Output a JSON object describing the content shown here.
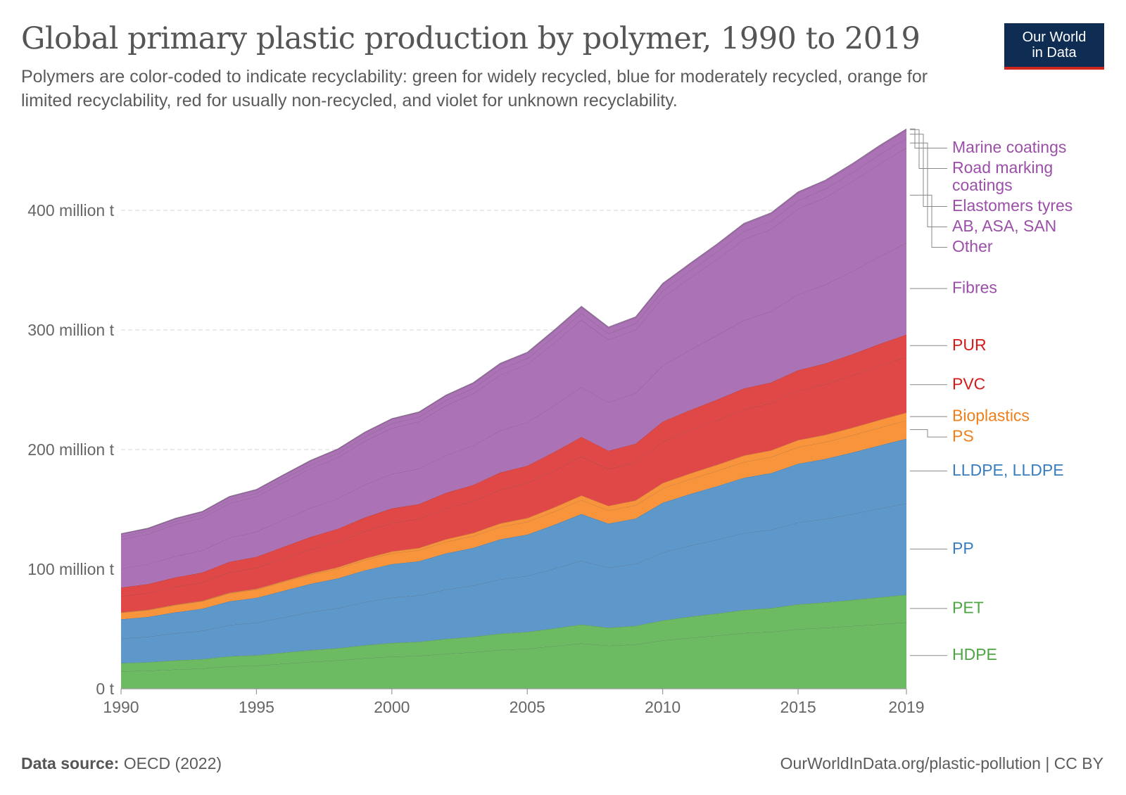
{
  "header": {
    "title": "Global primary plastic production by polymer, 1990 to 2019",
    "subtitle": "Polymers are color-coded to indicate recyclability: green for widely recycled, blue for moderately recycled, orange for limited recyclability, red for usually non-recycled, and violet for unknown recyclability.",
    "logo_line1": "Our World",
    "logo_line2": "in Data"
  },
  "footer": {
    "source_label": "Data source:",
    "source_value": "OECD (2022)",
    "credit": "OurWorldInData.org/plastic-pollution | CC BY"
  },
  "colors": {
    "widely_recycled": "#6cbb63",
    "moderately_recycled": "#5e97c9",
    "limited_recyclability": "#f8953c",
    "non_recycled": "#e04848",
    "unknown_recyclability": "#ab72b5"
  },
  "chart_data": {
    "type": "area",
    "stacked": true,
    "title": "Global primary plastic production by polymer, 1990 to 2019",
    "xlabel": "",
    "ylabel": "",
    "unit": "t",
    "ylim": [
      0,
      460000000
    ],
    "grid": true,
    "y_ticks": [
      {
        "value": 0,
        "label": "0 t"
      },
      {
        "value": 100000000,
        "label": "100 million t"
      },
      {
        "value": 200000000,
        "label": "200 million t"
      },
      {
        "value": 300000000,
        "label": "300 million t"
      },
      {
        "value": 400000000,
        "label": "400 million t"
      }
    ],
    "x_ticks": [
      {
        "value": 1990,
        "label": "1990"
      },
      {
        "value": 1995,
        "label": "1995"
      },
      {
        "value": 2000,
        "label": "2000"
      },
      {
        "value": 2005,
        "label": "2005"
      },
      {
        "value": 2010,
        "label": "2010"
      },
      {
        "value": 2015,
        "label": "2015"
      },
      {
        "value": 2019,
        "label": "2019"
      }
    ],
    "x": [
      1990,
      1991,
      1992,
      1993,
      1994,
      1995,
      1996,
      1997,
      1998,
      1999,
      2000,
      2001,
      2002,
      2003,
      2004,
      2005,
      2006,
      2007,
      2008,
      2009,
      2010,
      2011,
      2012,
      2013,
      2014,
      2015,
      2016,
      2017,
      2018,
      2019
    ],
    "series": [
      {
        "name": "HDPE",
        "color": "#6cbb63",
        "values": [
          14600000,
          15200000,
          16200000,
          17000000,
          18800000,
          19400000,
          21000000,
          22600000,
          23800000,
          25600000,
          27000000,
          27600000,
          29400000,
          30600000,
          32500000,
          33500000,
          35700000,
          38000000,
          36000000,
          37100000,
          40500000,
          42600000,
          44500000,
          46600000,
          47600000,
          49900000,
          51000000,
          52500000,
          54000000,
          55600000
        ]
      },
      {
        "name": "PET",
        "color": "#6cbb63",
        "values": [
          6800000,
          7000000,
          7500000,
          7800000,
          8300000,
          8600000,
          9200000,
          9700000,
          10100000,
          10800000,
          11300000,
          11700000,
          12300000,
          12800000,
          13600000,
          14000000,
          14800000,
          15700000,
          15000000,
          15500000,
          16600000,
          17600000,
          18400000,
          19300000,
          19800000,
          20700000,
          21200000,
          21800000,
          22400000,
          23000000
        ]
      },
      {
        "name": "PP",
        "color": "#5e97c9",
        "values": [
          20700000,
          21400000,
          22700000,
          23800000,
          26200000,
          27400000,
          29600000,
          31900000,
          33600000,
          36100000,
          38000000,
          38800000,
          41300000,
          43000000,
          45500000,
          47000000,
          50000000,
          53400000,
          50400000,
          51900000,
          56900000,
          59500000,
          61800000,
          64300000,
          65700000,
          68500000,
          69900000,
          71900000,
          74300000,
          76500000
        ]
      },
      {
        "name": "LLDPE, LLDPE",
        "color": "#5e97c9",
        "values": [
          16000000,
          16500000,
          17500000,
          18300000,
          19800000,
          20600000,
          22100000,
          23500000,
          24800000,
          26500000,
          27900000,
          28500000,
          30200000,
          31400000,
          33300000,
          34400000,
          36600000,
          39000000,
          36700000,
          37800000,
          41500000,
          43000000,
          44600000,
          46200000,
          47200000,
          49000000,
          50000000,
          51300000,
          52700000,
          54000000
        ]
      },
      {
        "name": "PS",
        "color": "#f8953c",
        "values": [
          5600000,
          5800000,
          6100000,
          6300000,
          6800000,
          7000000,
          7400000,
          7800000,
          8200000,
          8700000,
          9100000,
          9300000,
          9700000,
          10000000,
          10500000,
          10700000,
          11200000,
          11800000,
          11000000,
          11200000,
          12100000,
          12500000,
          12900000,
          13300000,
          13500000,
          14000000,
          14200000,
          14500000,
          14900000,
          15200000
        ]
      },
      {
        "name": "Bioplastics",
        "color": "#f8953c",
        "values": [
          200000,
          200000,
          300000,
          300000,
          400000,
          500000,
          600000,
          800000,
          1000000,
          1200000,
          1500000,
          1800000,
          2100000,
          2400000,
          2800000,
          3100000,
          3400000,
          3700000,
          3800000,
          4000000,
          4400000,
          4700000,
          5000000,
          5300000,
          5500000,
          5800000,
          6000000,
          6200000,
          6400000,
          6600000
        ]
      },
      {
        "name": "PVC",
        "color": "#e04848",
        "values": [
          13700000,
          14200000,
          15100000,
          15700000,
          17100000,
          17800000,
          19100000,
          20400000,
          21400000,
          22800000,
          24000000,
          24500000,
          25900000,
          26800000,
          28500000,
          29300000,
          31000000,
          32800000,
          30900000,
          31800000,
          34700000,
          36000000,
          37300000,
          38700000,
          39600000,
          41400000,
          42500000,
          43900000,
          45400000,
          46700000
        ]
      },
      {
        "name": "PUR",
        "color": "#e04848",
        "values": [
          7000000,
          7300000,
          7700000,
          8000000,
          8700000,
          9000000,
          9700000,
          10300000,
          10800000,
          11500000,
          12000000,
          12200000,
          12900000,
          13400000,
          14100000,
          14500000,
          15300000,
          16200000,
          15200000,
          15600000,
          16700000,
          17000000,
          17200000,
          17400000,
          17200000,
          17000000,
          17200000,
          17600000,
          18100000,
          18600000
        ]
      },
      {
        "name": "Fibres",
        "color": "#ab72b5",
        "values": [
          16000000,
          16700000,
          17700000,
          18500000,
          20300000,
          21100000,
          22800000,
          24300000,
          25600000,
          27500000,
          29000000,
          29700000,
          31600000,
          33000000,
          35200000,
          36400000,
          39000000,
          41700000,
          40500000,
          42400000,
          46900000,
          50400000,
          53800000,
          57200000,
          59600000,
          63400000,
          66000000,
          69500000,
          73200000,
          76900000
        ]
      },
      {
        "name": "Other",
        "color": "#ab72b5",
        "values": [
          24500000,
          25200000,
          26600000,
          27300000,
          28700000,
          29400000,
          31200000,
          33000000,
          34200000,
          36400000,
          38200000,
          39300000,
          41700000,
          43500000,
          46600000,
          48500000,
          52500000,
          56200000,
          52400000,
          52900000,
          57000000,
          60100000,
          63600000,
          67500000,
          68700000,
          71700000,
          72800000,
          75100000,
          77500000,
          79300000
        ]
      },
      {
        "name": "AB, ASA, SAN",
        "color": "#ab72b5",
        "values": [
          2200000,
          2300000,
          2500000,
          2600000,
          2800000,
          2900000,
          3100000,
          3300000,
          3500000,
          3700000,
          3900000,
          4000000,
          4200000,
          4400000,
          4700000,
          4900000,
          5200000,
          5600000,
          5200000,
          5300000,
          5700000,
          6000000,
          6300000,
          6700000,
          6800000,
          7100000,
          7200000,
          7400000,
          7700000,
          7900000
        ]
      },
      {
        "name": "Elastomers tyres",
        "color": "#ab72b5",
        "values": [
          2000000,
          2100000,
          2200000,
          2300000,
          2400000,
          2500000,
          2700000,
          2900000,
          3000000,
          3200000,
          3400000,
          3500000,
          3700000,
          3900000,
          4100000,
          4300000,
          4600000,
          4900000,
          4600000,
          4700000,
          5100000,
          5300000,
          5500000,
          5800000,
          5900000,
          6100000,
          6200000,
          6400000,
          6600000,
          6800000
        ]
      },
      {
        "name": "Road marking coatings",
        "color": "#ab72b5",
        "values": [
          300000,
          300000,
          300000,
          300000,
          400000,
          400000,
          400000,
          400000,
          400000,
          500000,
          500000,
          500000,
          500000,
          500000,
          600000,
          600000,
          600000,
          600000,
          600000,
          600000,
          700000,
          700000,
          700000,
          700000,
          700000,
          700000,
          800000,
          800000,
          800000,
          800000
        ]
      },
      {
        "name": "Marine coatings",
        "color": "#ab72b5",
        "values": [
          200000,
          200000,
          200000,
          200000,
          200000,
          200000,
          200000,
          200000,
          200000,
          200000,
          200000,
          200000,
          200000,
          300000,
          300000,
          300000,
          300000,
          300000,
          300000,
          300000,
          300000,
          300000,
          300000,
          300000,
          300000,
          300000,
          300000,
          300000,
          300000,
          300000
        ]
      }
    ],
    "legend": "right, labels at series ends"
  }
}
